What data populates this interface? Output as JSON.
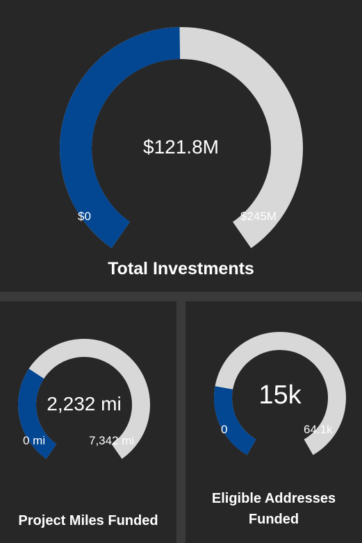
{
  "colors": {
    "fill": "#034691",
    "track": "#d8d8d8",
    "panel": "#272727",
    "text": "#ffffff"
  },
  "gauges": [
    {
      "id": "total-investments",
      "title": "Total Investments",
      "value_label": "$121.8M",
      "min_label": "$0",
      "max_label": "$245M",
      "value": 121.8,
      "min": 0,
      "max": 245
    },
    {
      "id": "project-miles",
      "title": "Project Miles Funded",
      "value_label": "2,232 mi",
      "min_label": "0 mi",
      "max_label": "7,342 mi",
      "value": 2232,
      "min": 0,
      "max": 7342
    },
    {
      "id": "eligible-addresses",
      "title_lines": [
        "Eligible Addresses",
        "Funded"
      ],
      "value_label": "15k",
      "min_label": "0",
      "max_label": "64.1k",
      "value": 15000,
      "min": 0,
      "max": 64100
    }
  ]
}
